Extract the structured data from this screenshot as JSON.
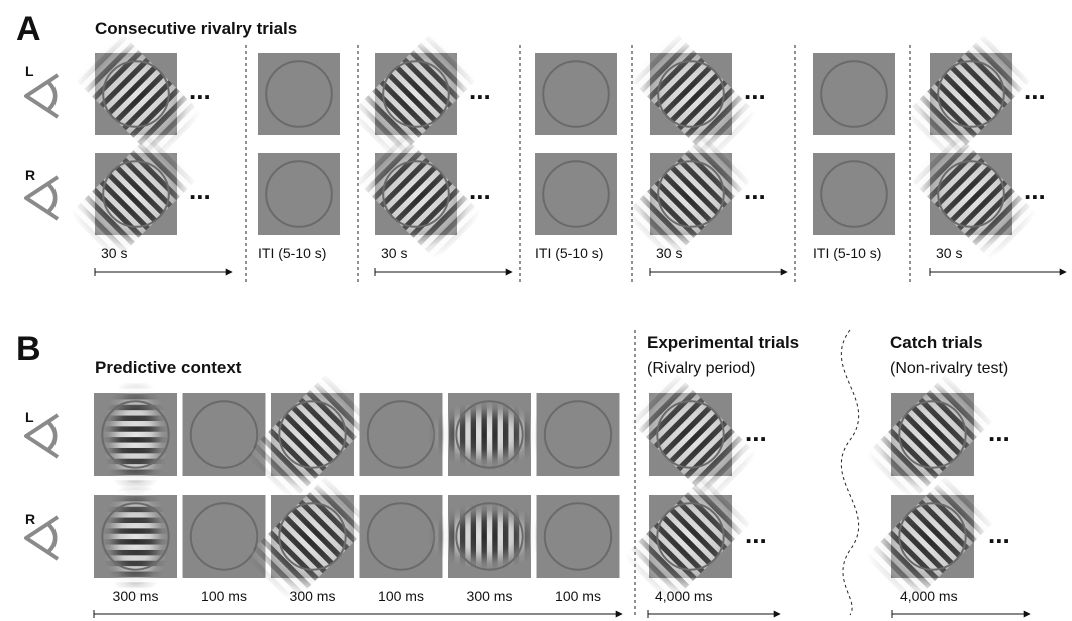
{
  "panel_a": {
    "letter": "A",
    "title": "Consecutive rivalry trials",
    "eye_labels": {
      "left": "L",
      "right": "R"
    },
    "trials": [
      {
        "kind": "rivalry",
        "left_eye_orientation": "right-tilted",
        "right_eye_orientation": "left-tilted",
        "duration": "30 s"
      },
      {
        "kind": "iti",
        "duration": "ITI (5-10 s)"
      },
      {
        "kind": "rivalry",
        "left_eye_orientation": "left-tilted",
        "right_eye_orientation": "right-tilted",
        "duration": "30 s"
      },
      {
        "kind": "iti",
        "duration": "ITI (5-10 s)"
      },
      {
        "kind": "rivalry",
        "left_eye_orientation": "right-tilted",
        "right_eye_orientation": "left-tilted",
        "duration": "30 s"
      },
      {
        "kind": "iti",
        "duration": "ITI (5-10 s)"
      },
      {
        "kind": "rivalry",
        "left_eye_orientation": "left-tilted",
        "right_eye_orientation": "right-tilted",
        "duration": "30 s"
      }
    ],
    "continuation_marker": "..."
  },
  "panel_b": {
    "letter": "B",
    "eye_labels": {
      "left": "L",
      "right": "R"
    },
    "predictive_context": {
      "title": "Predictive context",
      "frames": [
        {
          "stimulus": "horizontal",
          "duration": "300 ms"
        },
        {
          "stimulus": "blank",
          "duration": "100 ms"
        },
        {
          "stimulus": "left-tilted",
          "duration": "300 ms"
        },
        {
          "stimulus": "blank",
          "duration": "100 ms"
        },
        {
          "stimulus": "vertical",
          "duration": "300 ms"
        },
        {
          "stimulus": "blank",
          "duration": "100 ms"
        }
      ]
    },
    "experimental": {
      "title": "Experimental trials",
      "subtitle": "(Rivalry period)",
      "left_eye_orientation": "right-tilted",
      "right_eye_orientation": "left-tilted",
      "duration": "4,000 ms"
    },
    "catch": {
      "title": "Catch trials",
      "subtitle": "(Non-rivalry test)",
      "left_eye_orientation": "left-tilted",
      "right_eye_orientation": "left-tilted",
      "duration": "4,000 ms"
    },
    "continuation_marker": "..."
  },
  "colors": {
    "background": "#ffffff",
    "stimulus_gray": "#888888",
    "aperture_ring": "#6a6a6a",
    "eye_icon": "#8a8a8a",
    "text": "#111111"
  }
}
